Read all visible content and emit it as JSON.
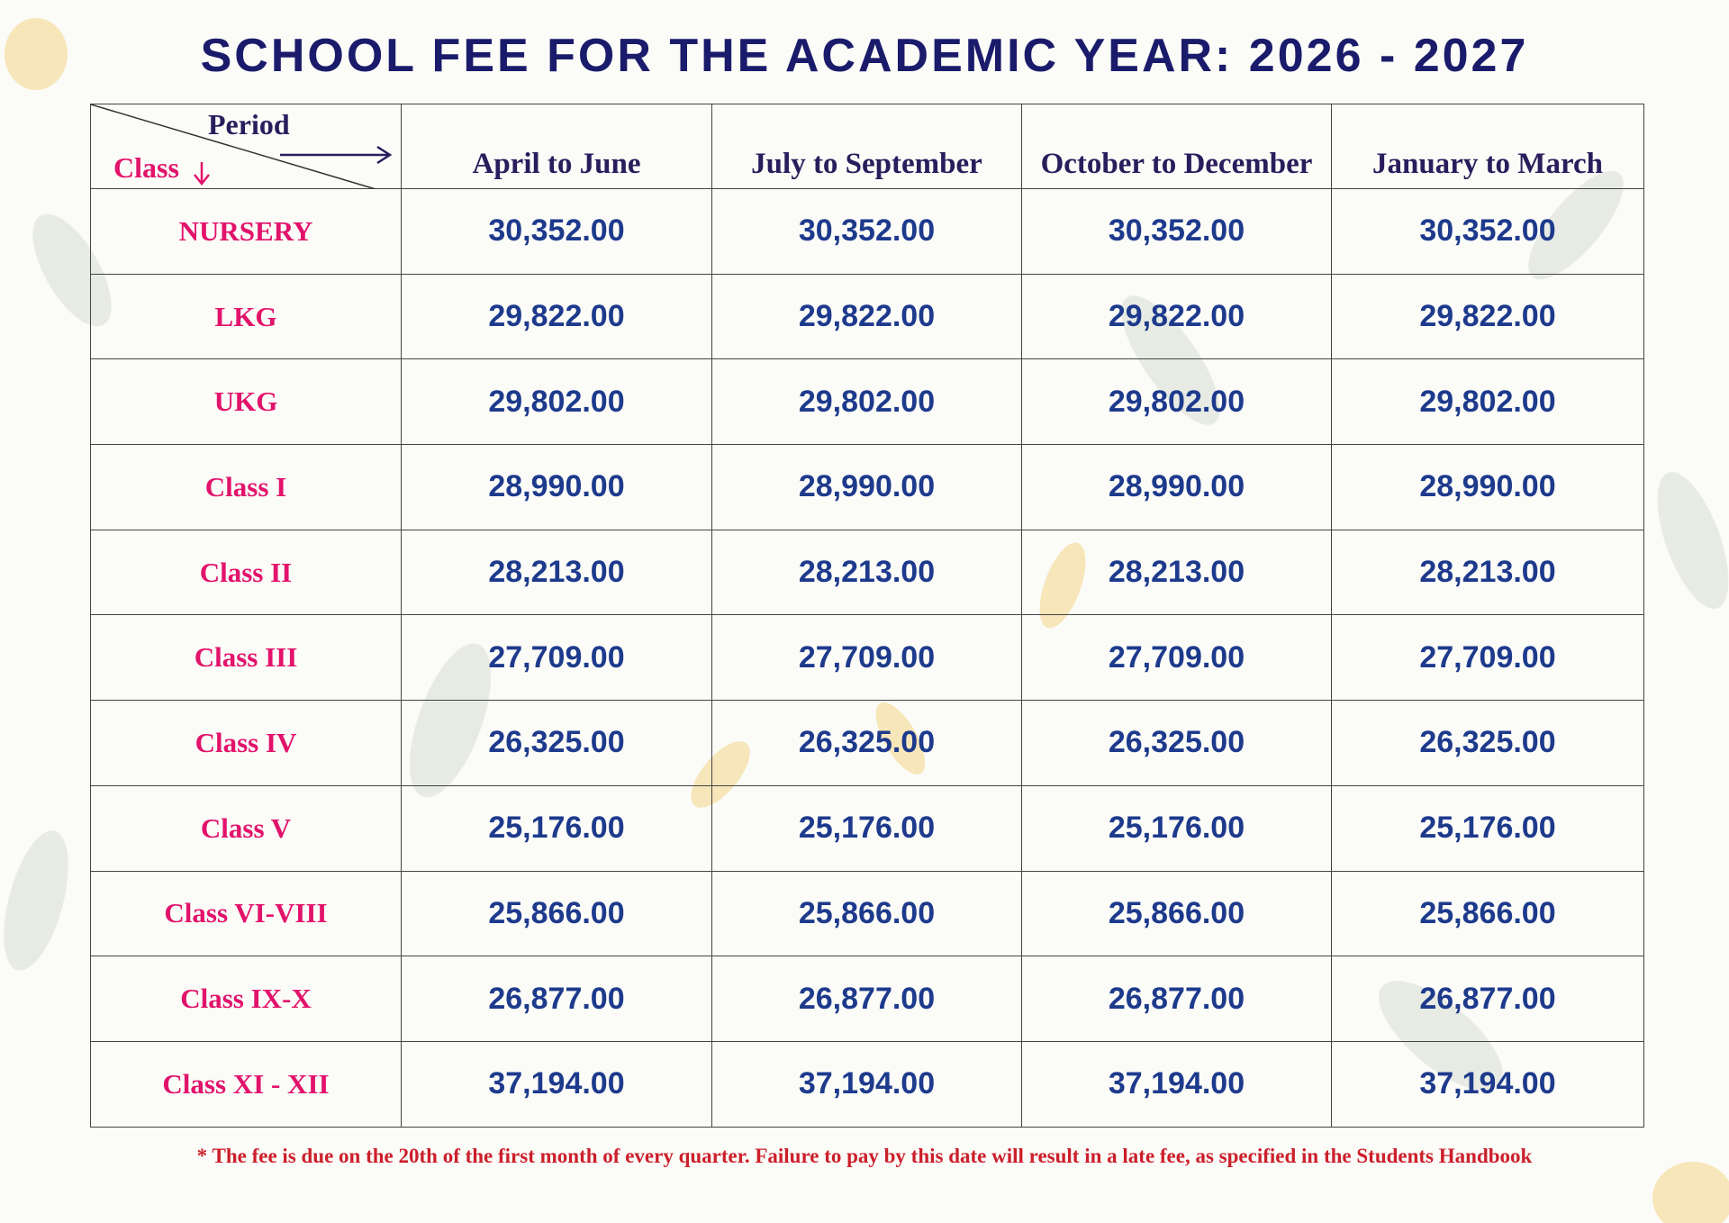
{
  "title": "SCHOOL FEE FOR THE ACADEMIC YEAR: 2026 - 2027",
  "table": {
    "corner": {
      "period": "Period",
      "class": "Class"
    },
    "columns": [
      "April to June",
      "July to September",
      "October to December",
      "January to March"
    ],
    "rows": [
      {
        "class": "NURSERY",
        "fees": [
          "30,352.00",
          "30,352.00",
          "30,352.00",
          "30,352.00"
        ]
      },
      {
        "class": "LKG",
        "fees": [
          "29,822.00",
          "29,822.00",
          "29,822.00",
          "29,822.00"
        ]
      },
      {
        "class": "UKG",
        "fees": [
          "29,802.00",
          "29,802.00",
          "29,802.00",
          "29,802.00"
        ]
      },
      {
        "class": "Class I",
        "fees": [
          "28,990.00",
          "28,990.00",
          "28,990.00",
          "28,990.00"
        ]
      },
      {
        "class": "Class II",
        "fees": [
          "28,213.00",
          "28,213.00",
          "28,213.00",
          "28,213.00"
        ]
      },
      {
        "class": "Class III",
        "fees": [
          "27,709.00",
          "27,709.00",
          "27,709.00",
          "27,709.00"
        ]
      },
      {
        "class": "Class IV",
        "fees": [
          "26,325.00",
          "26,325.00",
          "26,325.00",
          "26,325.00"
        ]
      },
      {
        "class": "Class V",
        "fees": [
          "25,176.00",
          "25,176.00",
          "25,176.00",
          "25,176.00"
        ]
      },
      {
        "class": "Class VI-VIII",
        "fees": [
          "25,866.00",
          "25,866.00",
          "25,866.00",
          "25,866.00"
        ]
      },
      {
        "class": "Class IX-X",
        "fees": [
          "26,877.00",
          "26,877.00",
          "26,877.00",
          "26,877.00"
        ]
      },
      {
        "class": "Class XI - XII",
        "fees": [
          "37,194.00",
          "37,194.00",
          "37,194.00",
          "37,194.00"
        ]
      }
    ]
  },
  "footnote": "* The fee is due on the 20th of the first month of every quarter. Failure to pay by this date will result in a late fee, as specified in the Students Handbook"
}
